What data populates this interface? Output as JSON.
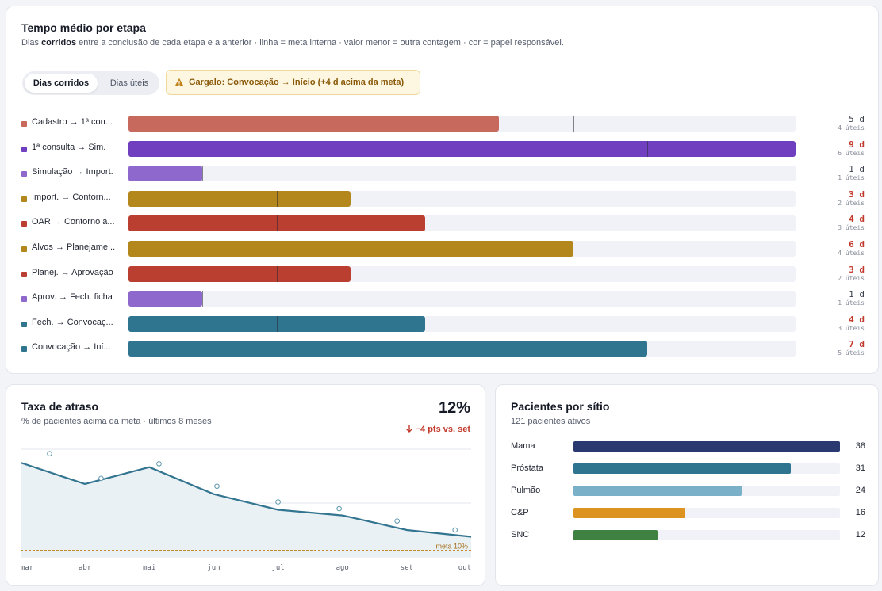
{
  "stages_card": {
    "title": "Tempo médio por etapa",
    "subtitle_pre": "Dias ",
    "subtitle_bold": "corridos",
    "subtitle_post": " entre a conclusão de cada etapa e a anterior · linha = meta interna · valor menor = outra contagem · cor = papel responsável.",
    "toggle": {
      "active": "Dias corridos",
      "inactive": "Dias úteis"
    },
    "warning": {
      "icon": "warning-triangle-icon",
      "text": "Gargalo: Convocação → Início (+4 d acima da meta)"
    },
    "max_days": 9,
    "rows": [
      {
        "label": "Cadastro → 1ª con...",
        "days": 5,
        "uteis": 4,
        "meta": 6,
        "color": "#c8695e",
        "value_text": "5 d",
        "uteis_text": "4 úteis",
        "over": false
      },
      {
        "label": "1ª consulta → Sim.",
        "days": 9,
        "uteis": 6,
        "meta": 7,
        "color": "#6f3fbf",
        "value_text": "9 d",
        "uteis_text": "6 úteis",
        "over": true
      },
      {
        "label": "Simulação → Import.",
        "days": 1,
        "uteis": 1,
        "meta": 1,
        "color": "#8e68cc",
        "value_text": "1 d",
        "uteis_text": "1 úteis",
        "over": false
      },
      {
        "label": "Import. → Contorn...",
        "days": 3,
        "uteis": 2,
        "meta": 2,
        "color": "#b4871c",
        "value_text": "3 d",
        "uteis_text": "2 úteis",
        "over": true
      },
      {
        "label": "OAR → Contorno a...",
        "days": 4,
        "uteis": 3,
        "meta": 2,
        "color": "#bb3f31",
        "value_text": "4 d",
        "uteis_text": "3 úteis",
        "over": true
      },
      {
        "label": "Alvos → Planejame...",
        "days": 6,
        "uteis": 4,
        "meta": 3,
        "color": "#b4871c",
        "value_text": "6 d",
        "uteis_text": "4 úteis",
        "over": true
      },
      {
        "label": "Planej. → Aprovação",
        "days": 3,
        "uteis": 2,
        "meta": 2,
        "color": "#bb3f31",
        "value_text": "3 d",
        "uteis_text": "2 úteis",
        "over": true
      },
      {
        "label": "Aprov. → Fech. ficha",
        "days": 1,
        "uteis": 1,
        "meta": 1,
        "color": "#8e68cc",
        "value_text": "1 d",
        "uteis_text": "1 úteis",
        "over": false
      },
      {
        "label": "Fech. → Convocaç...",
        "days": 4,
        "uteis": 3,
        "meta": 2,
        "color": "#307590",
        "value_text": "4 d",
        "uteis_text": "3 úteis",
        "over": true
      },
      {
        "label": "Convocação → Iní...",
        "days": 7,
        "uteis": 5,
        "meta": 3,
        "color": "#307590",
        "value_text": "7 d",
        "uteis_text": "5 úteis",
        "over": true
      }
    ]
  },
  "delay_card": {
    "title": "Taxa de atraso",
    "subtitle": "% de pacientes acima da meta · últimos 8 meses",
    "big_value": "12%",
    "delta": "−4 pts vs. set",
    "delta_icon": "arrow-down-icon",
    "meta_label": "meta 10%"
  },
  "chart_data": {
    "type": "line",
    "categories": [
      "mar",
      "abr",
      "mai",
      "jun",
      "jul",
      "ago",
      "set",
      "out"
    ],
    "series": [
      {
        "values": [
          39,
          29.5,
          37,
          25,
          18,
          15.5,
          9,
          6
        ]
      }
    ],
    "points": [
      {
        "x": 0.45,
        "y": 43
      },
      {
        "x": 1.25,
        "y": 32
      },
      {
        "x": 2.15,
        "y": 38.5
      },
      {
        "x": 3.05,
        "y": 28.5
      },
      {
        "x": 4.0,
        "y": 21.5
      },
      {
        "x": 4.95,
        "y": 18.5
      },
      {
        "x": 5.85,
        "y": 13
      },
      {
        "x": 6.75,
        "y": 9
      }
    ],
    "target": 0,
    "ylim": [
      -3,
      45
    ],
    "gridlines": [
      45,
      21
    ],
    "xlabel": "",
    "ylabel": "",
    "line_color": "#337590",
    "target_color": "#c38a2c"
  },
  "sites_card": {
    "title": "Pacientes por sítio",
    "subtitle": "121 pacientes ativos",
    "max": 38,
    "rows": [
      {
        "label": "Mama",
        "value": 38,
        "color": "#2a3a70"
      },
      {
        "label": "Próstata",
        "value": 31,
        "color": "#307590"
      },
      {
        "label": "Pulmão",
        "value": 24,
        "color": "#7ab0c8"
      },
      {
        "label": "C&P",
        "value": 16,
        "color": "#dd9320"
      },
      {
        "label": "SNC",
        "value": 12,
        "color": "#3f8140"
      }
    ]
  }
}
